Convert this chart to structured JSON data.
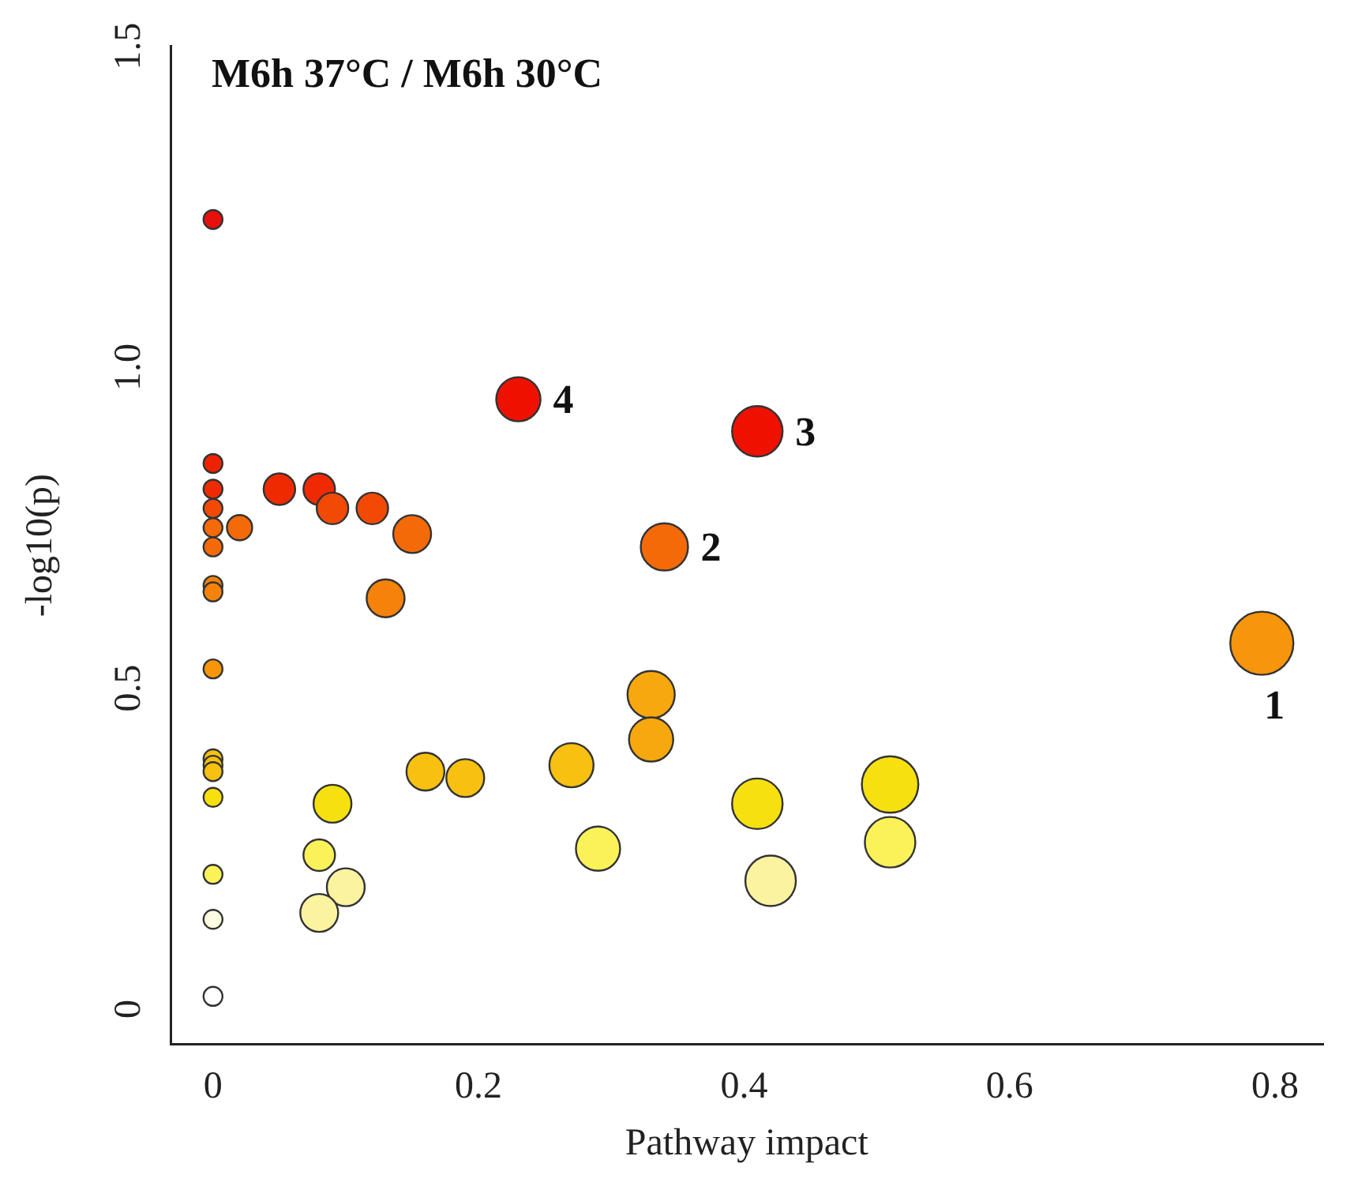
{
  "chart_data": {
    "type": "bubble",
    "title": "M6h 37°C / M6h 30°C",
    "xlabel": "Pathway impact",
    "ylabel": "-log10(p)",
    "xlim": [
      -0.032,
      0.836
    ],
    "ylim": [
      -0.055,
      1.5
    ],
    "xticks": [
      0,
      0.2,
      0.4,
      0.6,
      0.8
    ],
    "yticks": [
      0,
      0.5,
      {
        "value": 1,
        "label": "1.0"
      },
      1.5
    ],
    "grid": false,
    "legend": false,
    "x": [
      0,
      0,
      0,
      0,
      0,
      0,
      0,
      0,
      0,
      0,
      0,
      0,
      0,
      0,
      0,
      0,
      0.02,
      0.05,
      0.08,
      0.09,
      0.12,
      0.15,
      0.13,
      0.16,
      0.19,
      0.09,
      0.08,
      0.1,
      0.08,
      0.23,
      0.41,
      0.34,
      0.79,
      0.33,
      0.33,
      0.27,
      0.41,
      0.51,
      0.51,
      0.29,
      0.42
    ],
    "values": [
      1.23,
      0.85,
      0.81,
      0.78,
      0.75,
      0.72,
      0.66,
      0.65,
      0.53,
      0.39,
      0.38,
      0.37,
      0.33,
      0.21,
      0.14,
      0.02,
      0.75,
      0.81,
      0.81,
      0.78,
      0.78,
      0.74,
      0.64,
      0.37,
      0.36,
      0.32,
      0.24,
      0.19,
      0.15,
      0.95,
      0.9,
      0.72,
      0.57,
      0.49,
      0.42,
      0.38,
      0.32,
      0.35,
      0.26,
      0.25,
      0.2
    ],
    "sizes": [
      0.09,
      0.09,
      0.09,
      0.09,
      0.09,
      0.09,
      0.09,
      0.09,
      0.09,
      0.09,
      0.09,
      0.09,
      0.09,
      0.09,
      0.09,
      0.09,
      0.16,
      0.25,
      0.25,
      0.25,
      0.25,
      0.36,
      0.36,
      0.36,
      0.36,
      0.36,
      0.25,
      0.36,
      0.36,
      0.49,
      0.64,
      0.56,
      1,
      0.56,
      0.49,
      0.49,
      0.64,
      0.8,
      0.64,
      0.49,
      0.64
    ],
    "colors": [
      "#e8100c",
      "#ee2200",
      "#f02a00",
      "#f24a05",
      "#f46a08",
      "#f46a08",
      "#f5820a",
      "#f5820a",
      "#f7950c",
      "#f8c010",
      "#f8c010",
      "#f8c010",
      "#f7e010",
      "#fbf25a",
      "#fdfbe0",
      "#ffffff",
      "#f46a08",
      "#f02a00",
      "#f02a00",
      "#f24a05",
      "#f24a05",
      "#f46a08",
      "#f5820a",
      "#f8c010",
      "#f8c010",
      "#f7e010",
      "#fbf25a",
      "#fbf3a0",
      "#fbf3a0",
      "#ee1100",
      "#ee1100",
      "#f46a08",
      "#f7950c",
      "#f7a80f",
      "#f7a80f",
      "#f8c010",
      "#f7e010",
      "#f7e010",
      "#fbf25a",
      "#fbf25a",
      "#fbf3a0"
    ],
    "annotations": [
      {
        "text": "1",
        "x": 0.79,
        "y": 0.57
      },
      {
        "text": "2",
        "x": 0.34,
        "y": 0.72
      },
      {
        "text": "3",
        "x": 0.41,
        "y": 0.9
      },
      {
        "text": "4",
        "x": 0.23,
        "y": 0.95
      }
    ]
  }
}
